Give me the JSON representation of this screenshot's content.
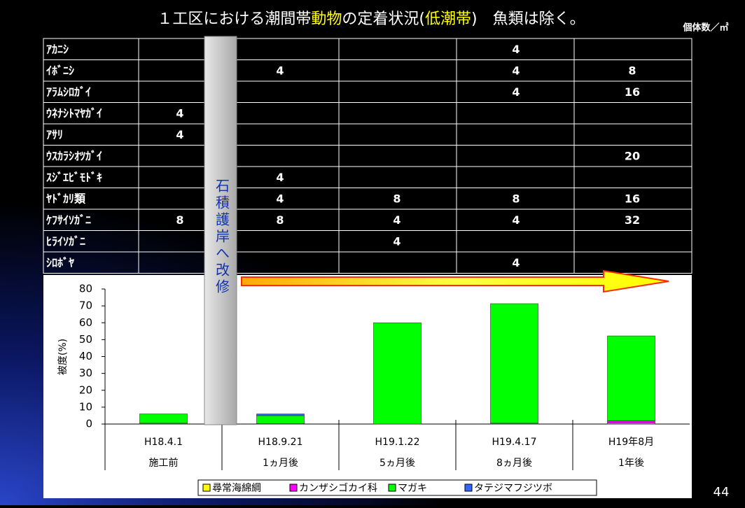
{
  "title_segments": [
    {
      "text": "１工区における潮間帯",
      "color": "#ffffff"
    },
    {
      "text": "動物",
      "color": "#ffff00"
    },
    {
      "text": "の定着状況(",
      "color": "#ffffff"
    },
    {
      "text": "低潮帯",
      "color": "#ffff00"
    },
    {
      "text": ")　魚類は除く。",
      "color": "#ffffff"
    }
  ],
  "unit_label": "個体数／㎡",
  "strip_label": "石積護岸へ改修",
  "page_number": "44",
  "table": {
    "rows": [
      {
        "name": "ｱｶﾆｼ",
        "cells": [
          null,
          null,
          null,
          "4",
          null
        ]
      },
      {
        "name": "ｲﾎﾞﾆｼ",
        "cells": [
          null,
          "4",
          null,
          "4",
          "8"
        ]
      },
      {
        "name": "ｱﾗﾑｼﾛｶﾞｲ",
        "cells": [
          null,
          null,
          null,
          "4",
          "16"
        ]
      },
      {
        "name": "ｳﾈﾅｼﾄﾏﾔｶﾞｲ",
        "cells": [
          "4",
          null,
          null,
          null,
          null
        ]
      },
      {
        "name": "ｱｻﾘ",
        "cells": [
          "4",
          null,
          null,
          null,
          null
        ]
      },
      {
        "name": "ｳｽｶﾗｼｵﾂｶﾞｲ",
        "cells": [
          null,
          null,
          null,
          null,
          "20"
        ]
      },
      {
        "name": "ｽｼﾞｴﾋﾞﾓﾄﾞｷ",
        "cells": [
          null,
          "4",
          null,
          null,
          null
        ]
      },
      {
        "name": "ﾔﾄﾞｶﾘ類",
        "cells": [
          null,
          "4",
          "8",
          "8",
          "16"
        ]
      },
      {
        "name": "ｹﾌｻｲｿｶﾞﾆ",
        "cells": [
          "8",
          "8",
          "4",
          "4",
          "32"
        ]
      },
      {
        "name": "ﾋﾗｲｿｶﾞﾆ",
        "cells": [
          null,
          null,
          "4",
          null,
          null
        ]
      },
      {
        "name": "ｼﾛﾎﾞﾔ",
        "cells": [
          null,
          null,
          null,
          "4",
          null
        ]
      }
    ]
  },
  "chart_data": {
    "type": "stacked_bar",
    "y_label": "被度(%)",
    "categories": [
      [
        "H18.4.1",
        "施工前"
      ],
      [
        "H18.9.21",
        "1ヵ月後"
      ],
      [
        "H19.1.22",
        "5ヵ月後"
      ],
      [
        "H19.4.17",
        "8ヵ月後"
      ],
      [
        "H19年8月",
        "1年後"
      ]
    ],
    "series": [
      {
        "name": "尋常海綿綱",
        "color": "#ffff00",
        "values": [
          0,
          0,
          0,
          0,
          0.5
        ]
      },
      {
        "name": "カンザシゴカイ科",
        "color": "#ff00ff",
        "values": [
          0.5,
          0.3,
          0,
          0.5,
          1.5
        ]
      },
      {
        "name": "マガキ",
        "color": "#00ff00",
        "values": [
          5.5,
          4.7,
          60,
          70.8,
          50.2
        ]
      },
      {
        "name": "タテジマフジツボ",
        "color": "#3366ff",
        "values": [
          0,
          1,
          0,
          0,
          0
        ]
      }
    ],
    "ylim": [
      0,
      80
    ],
    "yticks": [
      0,
      10,
      20,
      30,
      40,
      50,
      60,
      70,
      80
    ],
    "grid": false
  }
}
